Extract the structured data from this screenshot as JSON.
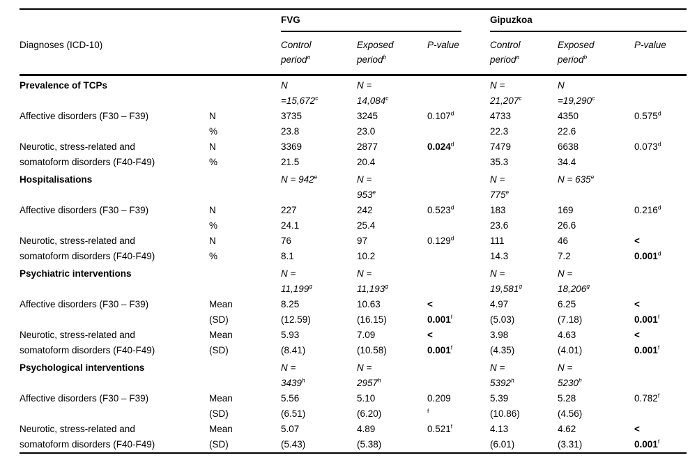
{
  "table": {
    "diagnoses_header": "Diagnoses (ICD-10)",
    "groups": [
      {
        "label": "FVG"
      },
      {
        "label": "Gipuzkoa"
      }
    ],
    "sub_headers": [
      "Control\nperiod^a",
      "Exposed\nperiod^b",
      "P-value",
      "Control\nperiod^a",
      "Exposed\nperiod^b",
      "P-value"
    ],
    "rows": [
      {
        "type": "section",
        "cells": [
          {
            "t": "Prevalence of TCPs",
            "s": "b"
          },
          "",
          {
            "t": "N\n=15,672^c",
            "s": "i"
          },
          {
            "t": "N =\n14,084^c",
            "s": "i"
          },
          "",
          {
            "t": "N =\n21,207^c",
            "s": "i"
          },
          {
            "t": "N\n=19,290^c",
            "s": "i"
          },
          ""
        ]
      },
      {
        "type": "data",
        "cells": [
          "Affective disorders (F30 – F39)",
          "N",
          "3735",
          "3245",
          "0.107^d",
          "4733",
          "4350",
          "0.575^d"
        ]
      },
      {
        "type": "data",
        "cells": [
          "",
          "%",
          "23.8",
          "23.0",
          "",
          "22.3",
          "22.6",
          ""
        ]
      },
      {
        "type": "data",
        "cells": [
          "Neurotic, stress-related and",
          "N",
          "3369",
          "2877",
          {
            "t": "0.024^d",
            "s": "b"
          },
          "7479",
          "6638",
          "0.073^d"
        ]
      },
      {
        "type": "data",
        "cells": [
          "somatoform disorders (F40-F49)",
          "%",
          "21.5",
          "20.4",
          "",
          "35.3",
          "34.4",
          ""
        ]
      },
      {
        "type": "section",
        "cells": [
          {
            "t": "Hospitalisations",
            "s": "b"
          },
          "",
          {
            "t": "N = 942^e",
            "s": "i"
          },
          {
            "t": "N =\n953^e",
            "s": "i"
          },
          "",
          {
            "t": "N =\n775^e",
            "s": "i"
          },
          {
            "t": "N = 635^e",
            "s": "i"
          },
          ""
        ]
      },
      {
        "type": "data",
        "cells": [
          "Affective disorders (F30 – F39)",
          "N",
          "227",
          "242",
          "0.523^d",
          "183",
          "169",
          "0.216^d"
        ]
      },
      {
        "type": "data",
        "cells": [
          "",
          "%",
          "24.1",
          "25.4",
          "",
          "23.6",
          "26.6",
          ""
        ]
      },
      {
        "type": "data",
        "cells": [
          "Neurotic, stress-related and",
          "N",
          "76",
          "97",
          "0.129^d",
          "111",
          "46",
          {
            "t": "<",
            "s": "b"
          }
        ]
      },
      {
        "type": "data",
        "cells": [
          "somatoform disorders (F40-F49)",
          "%",
          "8.1",
          "10.2",
          "",
          "14.3",
          "7.2",
          {
            "t": "0.001^d",
            "s": "b"
          }
        ]
      },
      {
        "type": "section",
        "cells": [
          {
            "t": "Psychiatric interventions",
            "s": "b"
          },
          "",
          {
            "t": "N =\n11,199^g",
            "s": "i"
          },
          {
            "t": "N =\n11,193^g",
            "s": "i"
          },
          "",
          {
            "t": "N =\n19,581^g",
            "s": "i"
          },
          {
            "t": "N =\n18,206^g",
            "s": "i"
          },
          ""
        ]
      },
      {
        "type": "data",
        "cells": [
          "Affective disorders (F30 – F39)",
          "Mean",
          "8.25",
          "10.63",
          {
            "t": "<",
            "s": "b"
          },
          "4.97",
          "6.25",
          {
            "t": "<",
            "s": "b"
          }
        ]
      },
      {
        "type": "data",
        "cells": [
          "",
          "(SD)",
          "(12.59)",
          "(16.15)",
          {
            "t": "0.001^f",
            "s": "b"
          },
          "(5.03)",
          "(7.18)",
          {
            "t": "0.001^f",
            "s": "b"
          }
        ]
      },
      {
        "type": "data",
        "cells": [
          "Neurotic, stress-related and",
          "Mean",
          "5.93",
          "7.09",
          {
            "t": "<",
            "s": "b"
          },
          "3.98",
          "4.63",
          {
            "t": "<",
            "s": "b"
          }
        ]
      },
      {
        "type": "data",
        "cells": [
          "somatoform disorders (F40-F49)",
          "(SD)",
          "(8.41)",
          "(10.58)",
          {
            "t": "0.001^f",
            "s": "b"
          },
          "(4.35)",
          "(4.01)",
          {
            "t": "0.001^f",
            "s": "b"
          }
        ]
      },
      {
        "type": "section",
        "cells": [
          {
            "t": "Psychological interventions",
            "s": "b"
          },
          "",
          {
            "t": "N =\n3439^h",
            "s": "i"
          },
          {
            "t": "N =\n2957^h",
            "s": "i"
          },
          "",
          {
            "t": "N =\n5392^h",
            "s": "i"
          },
          {
            "t": "N =\n5230^h",
            "s": "i"
          },
          ""
        ]
      },
      {
        "type": "data",
        "cells": [
          "Affective disorders (F30 – F39)",
          "Mean",
          "5.56",
          "5.10",
          "0.209",
          "5.39",
          "5.28",
          "0.782^f"
        ]
      },
      {
        "type": "data",
        "cells": [
          "",
          "(SD)",
          "(6.51)",
          "(6.20)",
          "^f",
          "(10.86)",
          "(4.56)",
          ""
        ]
      },
      {
        "type": "data",
        "cells": [
          "Neurotic, stress-related and",
          "Mean",
          "5.07",
          "4.89",
          "0.521^f",
          "4.13",
          "4.62",
          {
            "t": "<",
            "s": "b"
          }
        ]
      },
      {
        "type": "data",
        "cells": [
          "somatoform disorders (F40-F49)",
          "(SD)",
          "(5.43)",
          "(5.38)",
          "",
          "(6.01)",
          "(3.31)",
          {
            "t": "0.001^f",
            "s": "b"
          }
        ]
      }
    ],
    "colors": {
      "text": "#000000",
      "background": "#ffffff",
      "rule": "#000000"
    }
  }
}
